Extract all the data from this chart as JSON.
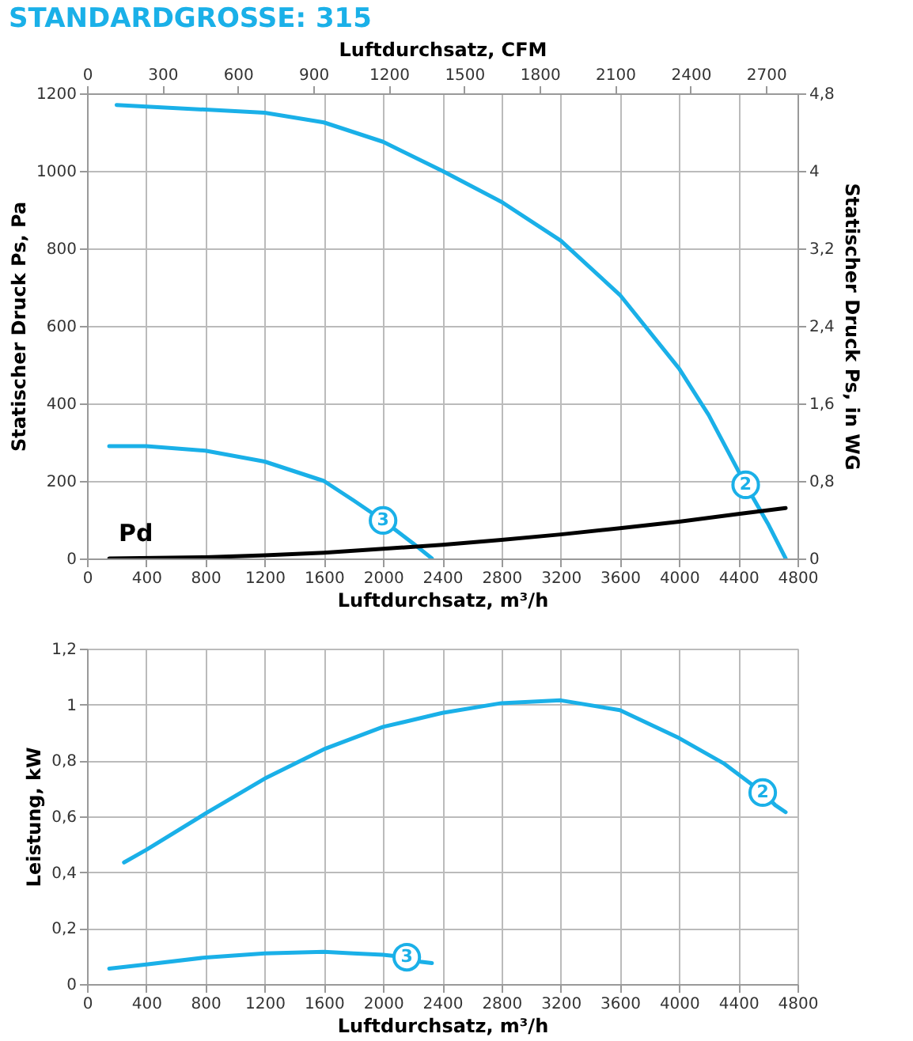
{
  "chart_data": [
    {
      "type": "line",
      "title": "STANDARDGROSSE: 315",
      "xlabel": "Luftdurchsatz, m³/h",
      "ylabel": "Statischer Druck Ps, Pa",
      "y2label": "Statischer Druck Ps, in WG",
      "x2label": "Luftdurchsatz, CFM",
      "xlim": [
        0,
        4800
      ],
      "xticks": [
        0,
        400,
        800,
        1200,
        1600,
        2000,
        2400,
        2800,
        3200,
        3600,
        4000,
        4400,
        4800
      ],
      "ylim": [
        0,
        1200
      ],
      "yticks": [
        0,
        200,
        400,
        600,
        800,
        1000,
        1200
      ],
      "y2lim": [
        0,
        4.8
      ],
      "y2ticks": [
        0,
        {
          "value": 0.8,
          "label": "0,8"
        },
        {
          "value": 1.6,
          "label": "1,6"
        },
        {
          "value": 2.4,
          "label": "2,4"
        },
        {
          "value": 3.2,
          "label": "3,2"
        },
        4,
        {
          "value": 4.8,
          "label": "4,8"
        }
      ],
      "x2lim": [
        0,
        2825
      ],
      "x2ticks": [
        0,
        300,
        600,
        900,
        1200,
        1500,
        1800,
        2100,
        2400,
        2700
      ],
      "grid": true,
      "legend": false,
      "marker": "none",
      "line_style": "solid",
      "annotations": [
        "Pd"
      ],
      "series": [
        {
          "name": "2",
          "color": "#1ab0e8",
          "x": [
            200,
            800,
            1200,
            1600,
            2000,
            2400,
            2800,
            3200,
            3600,
            4000,
            4200,
            4450,
            4600,
            4720
          ],
          "values": [
            1170,
            1158,
            1150,
            1125,
            1075,
            1000,
            920,
            820,
            680,
            490,
            370,
            190,
            90,
            0
          ]
        },
        {
          "name": "3",
          "color": "#1ab0e8",
          "x": [
            150,
            400,
            800,
            1200,
            1600,
            1800,
            2000,
            2200,
            2330
          ],
          "values": [
            290,
            290,
            278,
            250,
            200,
            150,
            98,
            40,
            0
          ]
        },
        {
          "color": "#000000",
          "x": [
            150,
            800,
            1200,
            1600,
            2000,
            2400,
            2800,
            3200,
            3600,
            4000,
            4400,
            4720
          ],
          "values": [
            0,
            3,
            8,
            15,
            25,
            35,
            48,
            62,
            78,
            95,
            115,
            130
          ]
        }
      ]
    },
    {
      "type": "line",
      "xlabel": "Luftdurchsatz, m³/h",
      "ylabel": "Leistung, kW",
      "xlim": [
        0,
        4800
      ],
      "xticks": [
        0,
        400,
        800,
        1200,
        1600,
        2000,
        2400,
        2800,
        3200,
        3600,
        4000,
        4400,
        4800
      ],
      "ylim": [
        0,
        1.2
      ],
      "yticks": [
        0,
        {
          "value": 0.2,
          "label": "0,2"
        },
        {
          "value": 0.4,
          "label": "0,4"
        },
        {
          "value": 0.6,
          "label": "0,6"
        },
        {
          "value": 0.8,
          "label": "0,8"
        },
        1,
        {
          "value": 1.2,
          "label": "1,2"
        }
      ],
      "grid": true,
      "legend": false,
      "marker": "none",
      "line_style": "solid",
      "series": [
        {
          "name": "2",
          "color": "#1ab0e8",
          "x": [
            250,
            400,
            800,
            1200,
            1600,
            2000,
            2400,
            2800,
            3200,
            3600,
            4000,
            4300,
            4565,
            4650,
            4720
          ],
          "values": [
            0.435,
            0.48,
            0.61,
            0.735,
            0.84,
            0.92,
            0.97,
            1.005,
            1.015,
            0.98,
            0.88,
            0.79,
            0.685,
            0.64,
            0.615
          ]
        },
        {
          "name": "3",
          "color": "#1ab0e8",
          "x": [
            150,
            400,
            800,
            1200,
            1600,
            1800,
            2000,
            2160,
            2250,
            2330
          ],
          "values": [
            0.055,
            0.07,
            0.095,
            0.11,
            0.115,
            0.11,
            0.105,
            0.096,
            0.08,
            0.075
          ]
        }
      ]
    }
  ]
}
